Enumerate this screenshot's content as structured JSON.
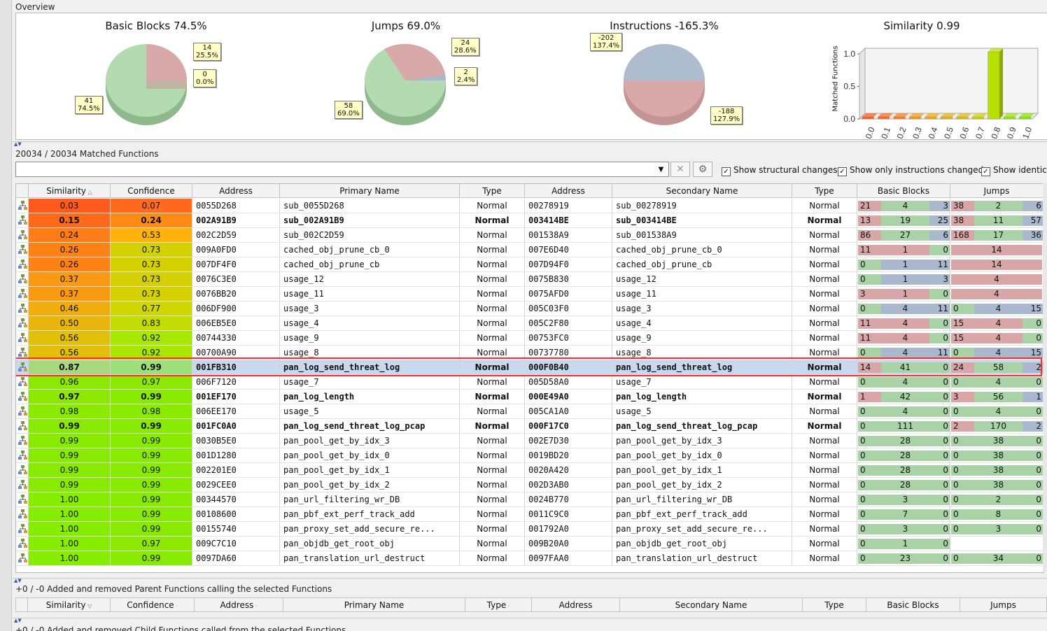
{
  "overview": {
    "title": "Overview",
    "pies": [
      {
        "title": "Basic Blocks 74.5%",
        "callouts": [
          [
            "14",
            "25.5%"
          ],
          [
            "0",
            "0.0%"
          ],
          [
            "41",
            "74.5%"
          ]
        ]
      },
      {
        "title": "Jumps 69.0%",
        "callouts": [
          [
            "24",
            "28.6%"
          ],
          [
            "2",
            "2.4%"
          ],
          [
            "58",
            "69.0%"
          ]
        ]
      },
      {
        "title": "Instructions -165.3%",
        "callouts": [
          [
            "-202",
            "137.4%"
          ],
          [
            "-188",
            "127.9%"
          ]
        ]
      }
    ],
    "histogram": {
      "title": "Similarity 0.99",
      "ylabel": "Matched Functions",
      "yticks": [
        "1.0",
        "0.5",
        "0.0"
      ],
      "xticks": [
        "0.0",
        "0.1",
        "0.2",
        "0.3",
        "0.4",
        "0.5",
        "0.6",
        "0.7",
        "0.8",
        "0.9",
        "1.0"
      ]
    }
  },
  "chart_data": {
    "type": "bar",
    "title": "Similarity 0.99",
    "ylabel": "Matched Functions",
    "categories": [
      "0.0",
      "0.1",
      "0.2",
      "0.3",
      "0.4",
      "0.5",
      "0.6",
      "0.7",
      "0.8",
      "0.9",
      "1.0"
    ],
    "values": [
      0,
      0,
      0,
      0,
      0,
      0,
      0,
      0,
      1,
      0,
      0
    ],
    "ylim": [
      0,
      1
    ]
  },
  "matched": {
    "title": "20034 / 20034 Matched Functions",
    "filter_value": "",
    "checkboxes": [
      "Show structural changes",
      "Show only instructions changed",
      "Show identica"
    ]
  },
  "columns": [
    "Similarity",
    "Confidence",
    "Address",
    "Primary Name",
    "Type",
    "Address",
    "Secondary Name",
    "Type",
    "Basic Blocks",
    "Jumps"
  ],
  "rows": [
    {
      "sim": "0.03",
      "conf": "0.07",
      "pa": "0055D268",
      "pn": "sub_0055D268",
      "pt": "Normal",
      "sa": "00278919",
      "sn": "sub_00278919",
      "st": "Normal",
      "bb": [
        "21",
        "4",
        "3"
      ],
      "jp": [
        "38",
        "2",
        "6"
      ],
      "bold": false,
      "simc": "#ff5a1e",
      "confc": "#ff6a1e"
    },
    {
      "sim": "0.15",
      "conf": "0.24",
      "pa": "002A91B9",
      "pn": "sub_002A91B9",
      "pt": "Normal",
      "sa": "003414BE",
      "sn": "sub_003414BE",
      "st": "Normal",
      "bb": [
        "13",
        "19",
        "25"
      ],
      "jp": [
        "38",
        "11",
        "57"
      ],
      "bold": true,
      "simc": "#ff6a1a",
      "confc": "#ff8a14"
    },
    {
      "sim": "0.24",
      "conf": "0.53",
      "pa": "002C2D59",
      "pn": "sub_002C2D59",
      "pt": "Normal",
      "sa": "001538A9",
      "sn": "sub_001538A9",
      "st": "Normal",
      "bb": [
        "86",
        "27",
        "6"
      ],
      "jp": [
        "168",
        "17",
        "36"
      ],
      "bold": false,
      "simc": "#ff7d18",
      "confc": "#ffb30a"
    },
    {
      "sim": "0.26",
      "conf": "0.73",
      "pa": "009A0FD0",
      "pn": "cached_obj_prune_cb_0",
      "pt": "Normal",
      "sa": "007E6D40",
      "sn": "cached_obj_prune_cb_0",
      "st": "Normal",
      "bb": [
        "11",
        "1",
        "0"
      ],
      "jp": [
        "",
        "14",
        ""
      ],
      "bold": false,
      "simc": "#ff8216",
      "confc": "#d5d000"
    },
    {
      "sim": "0.26",
      "conf": "0.73",
      "pa": "007DF4F0",
      "pn": "cached_obj_prune_cb",
      "pt": "Normal",
      "sa": "007D94F0",
      "sn": "cached_obj_prune_cb",
      "st": "Normal",
      "bb": [
        "0",
        "1",
        "11"
      ],
      "jp": [
        "",
        "14",
        ""
      ],
      "bold": false,
      "simc": "#ff8216",
      "confc": "#d5d000"
    },
    {
      "sim": "0.37",
      "conf": "0.73",
      "pa": "0076C3E0",
      "pn": "usage_12",
      "pt": "Normal",
      "sa": "0075B830",
      "sn": "usage_12",
      "st": "Normal",
      "bb": [
        "0",
        "1",
        "3"
      ],
      "jp": [
        "",
        "4",
        ""
      ],
      "bold": false,
      "simc": "#f99a12",
      "confc": "#d5d000"
    },
    {
      "sim": "0.37",
      "conf": "0.73",
      "pa": "0076BB20",
      "pn": "usage_11",
      "pt": "Normal",
      "sa": "0075AFD0",
      "sn": "usage_11",
      "st": "Normal",
      "bb": [
        "3",
        "1",
        "0"
      ],
      "jp": [
        "",
        "4",
        ""
      ],
      "bold": false,
      "simc": "#f99a12",
      "confc": "#d5d000"
    },
    {
      "sim": "0.46",
      "conf": "0.77",
      "pa": "006DF900",
      "pn": "usage_3",
      "pt": "Normal",
      "sa": "005C03F0",
      "sn": "usage_3",
      "st": "Normal",
      "bb": [
        "0",
        "4",
        "11"
      ],
      "jp": [
        "0",
        "4",
        "15"
      ],
      "bold": false,
      "simc": "#f0ad0c",
      "confc": "#cfd600"
    },
    {
      "sim": "0.50",
      "conf": "0.83",
      "pa": "006EB5E0",
      "pn": "usage_4",
      "pt": "Normal",
      "sa": "005C2F80",
      "sn": "usage_4",
      "st": "Normal",
      "bb": [
        "11",
        "4",
        "0"
      ],
      "jp": [
        "15",
        "4",
        "0"
      ],
      "bold": false,
      "simc": "#eab50a",
      "confc": "#c3dc00"
    },
    {
      "sim": "0.56",
      "conf": "0.92",
      "pa": "00744330",
      "pn": "usage_9",
      "pt": "Normal",
      "sa": "00753FC0",
      "sn": "usage_9",
      "st": "Normal",
      "bb": [
        "11",
        "4",
        "0"
      ],
      "jp": [
        "15",
        "4",
        "0"
      ],
      "bold": false,
      "simc": "#e2bf08",
      "confc": "#a9e600"
    },
    {
      "sim": "0.56",
      "conf": "0.92",
      "pa": "00700A90",
      "pn": "usage_8",
      "pt": "Normal",
      "sa": "00737780",
      "sn": "usage_8",
      "st": "Normal",
      "bb": [
        "0",
        "4",
        "11"
      ],
      "jp": [
        "0",
        "4",
        "15"
      ],
      "bold": false,
      "simc": "#e2bf08",
      "confc": "#a9e600"
    },
    {
      "sim": "0.87",
      "conf": "0.99",
      "pa": "001FB310",
      "pn": "pan_log_send_threat_log",
      "pt": "Normal",
      "sa": "000F0B40",
      "sn": "pan_log_send_threat_log",
      "st": "Normal",
      "bb": [
        "14",
        "41",
        "0"
      ],
      "jp": [
        "24",
        "58",
        "2"
      ],
      "bold": true,
      "simc": "#a9d97f",
      "confc": "#9de07a",
      "selected": true
    },
    {
      "sim": "0.96",
      "conf": "0.97",
      "pa": "006F7120",
      "pn": "usage_7",
      "pt": "Normal",
      "sa": "005D58A0",
      "sn": "usage_7",
      "st": "Normal",
      "bb": [
        "0",
        "4",
        "0"
      ],
      "jp": [
        "0",
        "4",
        "0"
      ],
      "bold": false,
      "simc": "#8ce800",
      "confc": "#8ce800"
    },
    {
      "sim": "0.97",
      "conf": "0.99",
      "pa": "001EF170",
      "pn": "pan_log_length",
      "pt": "Normal",
      "sa": "000E49A0",
      "sn": "pan_log_length",
      "st": "Normal",
      "bb": [
        "1",
        "42",
        "0"
      ],
      "jp": [
        "3",
        "56",
        "1"
      ],
      "bold": true,
      "simc": "#8ce800",
      "confc": "#88ea00"
    },
    {
      "sim": "0.98",
      "conf": "0.98",
      "pa": "006EE170",
      "pn": "usage_5",
      "pt": "Normal",
      "sa": "005CA1A0",
      "sn": "usage_5",
      "st": "Normal",
      "bb": [
        "0",
        "4",
        "0"
      ],
      "jp": [
        "0",
        "4",
        "0"
      ],
      "bold": false,
      "simc": "#8aea00",
      "confc": "#8aea00"
    },
    {
      "sim": "0.99",
      "conf": "0.99",
      "pa": "001FC0A0",
      "pn": "pan_log_send_threat_log_pcap",
      "pt": "Normal",
      "sa": "000F17C0",
      "sn": "pan_log_send_threat_log_pcap",
      "st": "Normal",
      "bb": [
        "0",
        "111",
        "0"
      ],
      "jp": [
        "2",
        "170",
        "2"
      ],
      "bold": true,
      "simc": "#88ea00",
      "confc": "#88ea00"
    },
    {
      "sim": "0.99",
      "conf": "0.99",
      "pa": "0030B5E0",
      "pn": "pan_pool_get_by_idx_3",
      "pt": "Normal",
      "sa": "002E7D30",
      "sn": "pan_pool_get_by_idx_3",
      "st": "Normal",
      "bb": [
        "0",
        "28",
        "0"
      ],
      "jp": [
        "0",
        "38",
        "0"
      ],
      "bold": false,
      "simc": "#88ea00",
      "confc": "#88ea00"
    },
    {
      "sim": "0.99",
      "conf": "0.99",
      "pa": "001D1280",
      "pn": "pan_pool_get_by_idx_0",
      "pt": "Normal",
      "sa": "0019BD20",
      "sn": "pan_pool_get_by_idx_0",
      "st": "Normal",
      "bb": [
        "0",
        "28",
        "0"
      ],
      "jp": [
        "0",
        "38",
        "0"
      ],
      "bold": false,
      "simc": "#88ea00",
      "confc": "#88ea00"
    },
    {
      "sim": "0.99",
      "conf": "0.99",
      "pa": "002201E0",
      "pn": "pan_pool_get_by_idx_1",
      "pt": "Normal",
      "sa": "0020A420",
      "sn": "pan_pool_get_by_idx_1",
      "st": "Normal",
      "bb": [
        "0",
        "28",
        "0"
      ],
      "jp": [
        "0",
        "38",
        "0"
      ],
      "bold": false,
      "simc": "#88ea00",
      "confc": "#88ea00"
    },
    {
      "sim": "0.99",
      "conf": "0.99",
      "pa": "0029CEE0",
      "pn": "pan_pool_get_by_idx_2",
      "pt": "Normal",
      "sa": "002D3AB0",
      "sn": "pan_pool_get_by_idx_2",
      "st": "Normal",
      "bb": [
        "0",
        "28",
        "0"
      ],
      "jp": [
        "0",
        "38",
        "0"
      ],
      "bold": false,
      "simc": "#88ea00",
      "confc": "#88ea00"
    },
    {
      "sim": "1.00",
      "conf": "0.99",
      "pa": "00344570",
      "pn": "pan_url_filtering_wr_DB",
      "pt": "Normal",
      "sa": "0024B770",
      "sn": "pan_url_filtering_wr_DB",
      "st": "Normal",
      "bb": [
        "0",
        "3",
        "0"
      ],
      "jp": [
        "0",
        "2",
        "0"
      ],
      "bold": false,
      "simc": "#86ec00",
      "confc": "#88ea00"
    },
    {
      "sim": "1.00",
      "conf": "0.99",
      "pa": "00108600",
      "pn": "pan_pbf_ext_perf_track_add",
      "pt": "Normal",
      "sa": "0011C9C0",
      "sn": "pan_pbf_ext_perf_track_add",
      "st": "Normal",
      "bb": [
        "0",
        "7",
        "0"
      ],
      "jp": [
        "0",
        "8",
        "0"
      ],
      "bold": false,
      "simc": "#86ec00",
      "confc": "#88ea00"
    },
    {
      "sim": "1.00",
      "conf": "0.99",
      "pa": "00155740",
      "pn": "pan_proxy_set_add_secure_re...",
      "pt": "Normal",
      "sa": "001792A0",
      "sn": "pan_proxy_set_add_secure_re...",
      "st": "Normal",
      "bb": [
        "0",
        "3",
        "0"
      ],
      "jp": [
        "0",
        "3",
        "0"
      ],
      "bold": false,
      "simc": "#86ec00",
      "confc": "#88ea00"
    },
    {
      "sim": "1.00",
      "conf": "0.97",
      "pa": "009C7C10",
      "pn": "pan_objdb_get_root_obj",
      "pt": "Normal",
      "sa": "009B20A0",
      "sn": "pan_objdb_get_root_obj",
      "st": "Normal",
      "bb": [
        "0",
        "1",
        "0"
      ],
      "jp": null,
      "bold": false,
      "simc": "#86ec00",
      "confc": "#8ce800"
    },
    {
      "sim": "1.00",
      "conf": "0.99",
      "pa": "0097DA60",
      "pn": "pan_translation_url_destruct",
      "pt": "Normal",
      "sa": "0097FAA0",
      "sn": "pan_translation_url_destruct",
      "st": "Normal",
      "bb": [
        "0",
        "23",
        "0"
      ],
      "jp": [
        "0",
        "34",
        "0"
      ],
      "bold": false,
      "simc": "#86ec00",
      "confc": "#88ea00"
    }
  ],
  "parents": {
    "title": "+0 / -0 Added and removed Parent Functions calling the selected Functions",
    "columns": [
      "Similarity",
      "Confidence",
      "Address",
      "Primary Name",
      "Type",
      "Address",
      "Secondary Name",
      "Type",
      "Basic Blocks",
      "Jumps"
    ]
  },
  "children": {
    "title": "+0 / -0 Added and removed Child Functions called from the selected Functions"
  },
  "colors": {
    "red": "#d8a6a6",
    "green": "#a9d3a6",
    "blue": "#a9b8cc",
    "selected": "#c8d8ee",
    "highlight": "#ff2a2a"
  }
}
